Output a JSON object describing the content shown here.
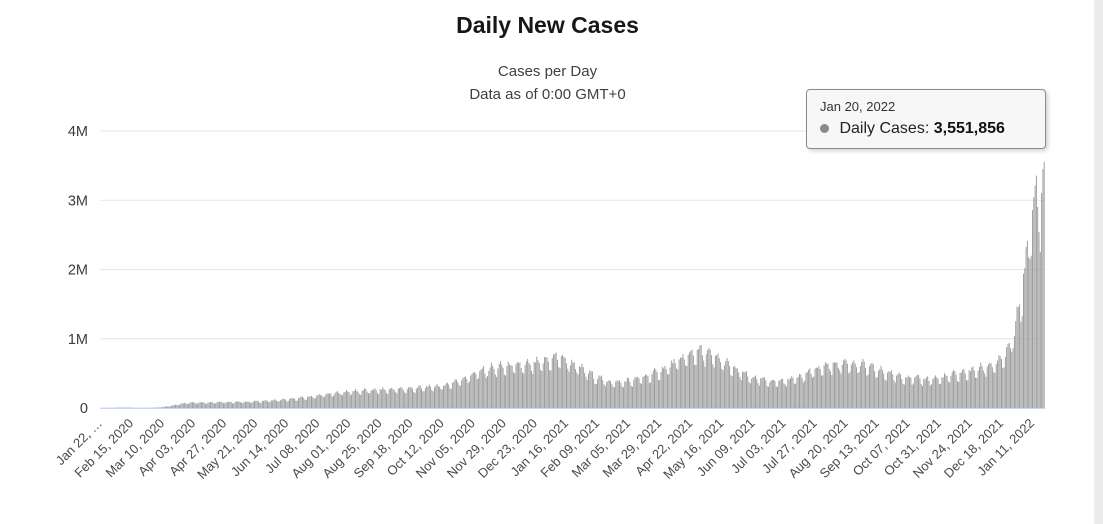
{
  "tooltip": {
    "date": "Jan 20, 2022",
    "series_label": "Daily Cases:",
    "value": "3,551,856",
    "marker_color": "#8a8a8a"
  },
  "chart_data": {
    "type": "bar",
    "title": "Daily New Cases",
    "subtitle_line1": "Cases per Day",
    "subtitle_line2": "Data as of 0:00 GMT+0",
    "series": [
      {
        "name": "Daily Cases",
        "color": "#9b9b9b"
      }
    ],
    "x_start_date": "2020-01-22",
    "x_end_date": "2022-01-20",
    "days_total": 730,
    "x_tick_interval_days": 24,
    "x_tick_labels": [
      "Jan 22, …",
      "Feb 15, 2020",
      "Mar 10, 2020",
      "Apr 03, 2020",
      "Apr 27, 2020",
      "May 21, 2020",
      "Jun 14, 2020",
      "Jul 08, 2020",
      "Aug 01, 2020",
      "Aug 25, 2020",
      "Sep 18, 2020",
      "Oct 12, 2020",
      "Nov 05, 2020",
      "Nov 29, 2020",
      "Dec 23, 2020",
      "Jan 16, 2021",
      "Feb 09, 2021",
      "Mar 05, 2021",
      "Mar 29, 2021",
      "Apr 22, 2021",
      "May 16, 2021",
      "Jun 09, 2021",
      "Jul 03, 2021",
      "Jul 27, 2021",
      "Aug 20, 2021",
      "Sep 13, 2021",
      "Oct 07, 2021",
      "Oct 31, 2021",
      "Nov 24, 2021",
      "Dec 18, 2021",
      "Jan 11, 2022"
    ],
    "y_ticks": [
      {
        "label": "0",
        "value": 0
      },
      {
        "label": "1M",
        "value": 1000000
      },
      {
        "label": "2M",
        "value": 2000000
      },
      {
        "label": "3M",
        "value": 3000000
      },
      {
        "label": "4M",
        "value": 4000000
      }
    ],
    "ylim": [
      0,
      4000000
    ],
    "grid": "horizontal",
    "gridline_color": "#e6e6e6",
    "axis_line_color": "#ccd6eb",
    "highlight_point": {
      "date": "Jan 20, 2022",
      "value": 3551856
    },
    "envelope_keypoints": [
      [
        0,
        600
      ],
      [
        8,
        2600
      ],
      [
        18,
        3600
      ],
      [
        26,
        2400
      ],
      [
        38,
        1900
      ],
      [
        46,
        9000
      ],
      [
        54,
        30000
      ],
      [
        62,
        62000
      ],
      [
        70,
        79000
      ],
      [
        85,
        80000
      ],
      [
        100,
        84000
      ],
      [
        115,
        90000
      ],
      [
        130,
        105000
      ],
      [
        145,
        122000
      ],
      [
        160,
        155000
      ],
      [
        175,
        195000
      ],
      [
        190,
        232000
      ],
      [
        205,
        250000
      ],
      [
        220,
        262000
      ],
      [
        235,
        272000
      ],
      [
        250,
        292000
      ],
      [
        265,
        320000
      ],
      [
        278,
        400000
      ],
      [
        290,
        500000
      ],
      [
        302,
        570000
      ],
      [
        315,
        600000
      ],
      [
        328,
        610000
      ],
      [
        340,
        645000
      ],
      [
        348,
        700000
      ],
      [
        354,
        735000
      ],
      [
        362,
        655000
      ],
      [
        372,
        555000
      ],
      [
        382,
        450000
      ],
      [
        392,
        380000
      ],
      [
        400,
        365000
      ],
      [
        412,
        400000
      ],
      [
        424,
        465000
      ],
      [
        436,
        560000
      ],
      [
        448,
        690000
      ],
      [
        458,
        790000
      ],
      [
        464,
        810000
      ],
      [
        472,
        755000
      ],
      [
        482,
        650000
      ],
      [
        492,
        530000
      ],
      [
        504,
        430000
      ],
      [
        516,
        385000
      ],
      [
        528,
        385000
      ],
      [
        540,
        455000
      ],
      [
        552,
        545000
      ],
      [
        564,
        615000
      ],
      [
        576,
        645000
      ],
      [
        588,
        615000
      ],
      [
        600,
        545000
      ],
      [
        612,
        480000
      ],
      [
        624,
        435000
      ],
      [
        636,
        410000
      ],
      [
        648,
        425000
      ],
      [
        660,
        480000
      ],
      [
        670,
        515000
      ],
      [
        680,
        565000
      ],
      [
        690,
        625000
      ],
      [
        697,
        700000
      ],
      [
        702,
        850000
      ],
      [
        707,
        1150000
      ],
      [
        712,
        1700000
      ],
      [
        716,
        2250000
      ],
      [
        719,
        2650000
      ],
      [
        722,
        2950000
      ],
      [
        724,
        3100000
      ],
      [
        726,
        2980000
      ],
      [
        728,
        3150000
      ],
      [
        729,
        3250000
      ]
    ],
    "weekly_pattern": [
      1.06,
      1.1,
      1.07,
      0.97,
      0.82,
      0.8,
      1.0
    ],
    "jitter": 0.06
  }
}
